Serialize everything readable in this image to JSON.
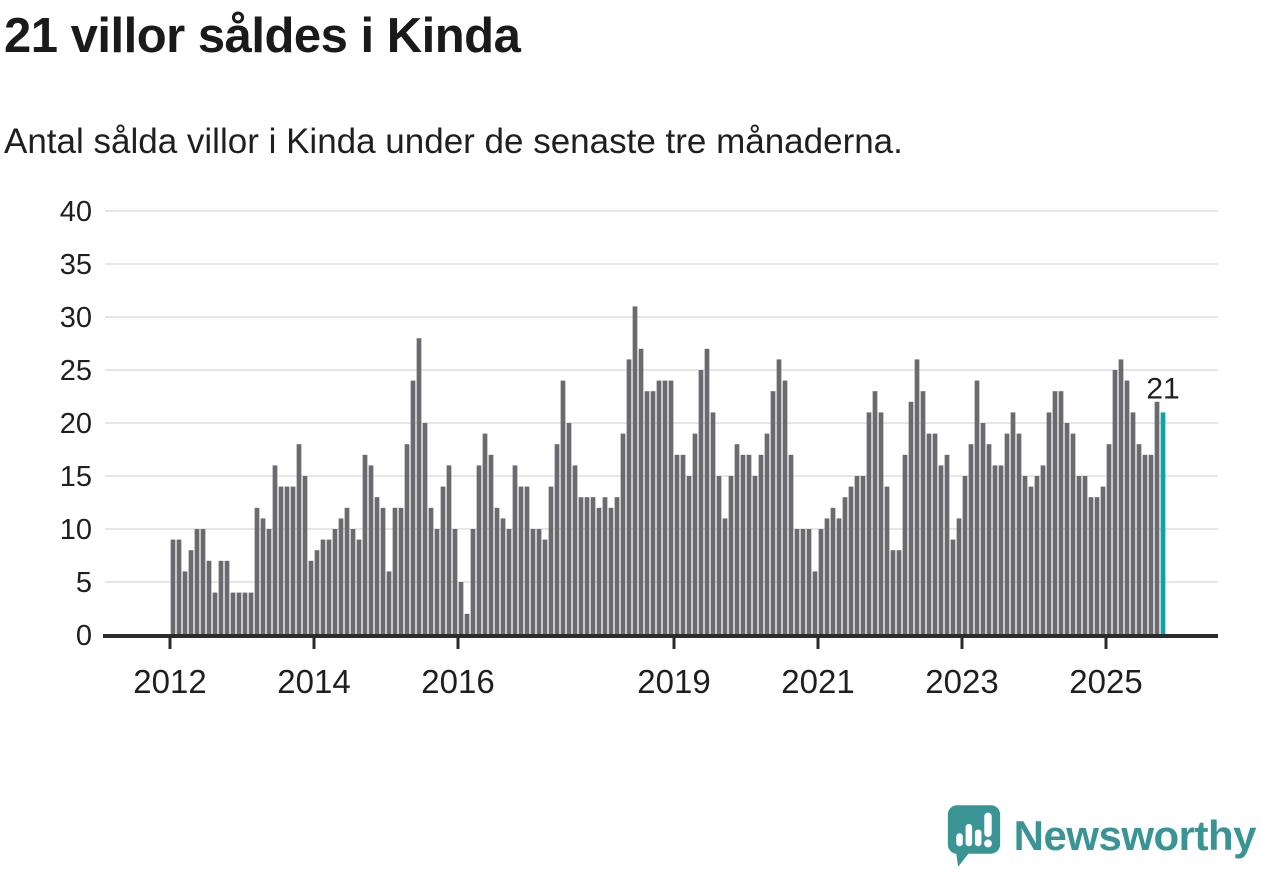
{
  "title": "21 villor såldes i Kinda",
  "subtitle": "Antal sålda villor i Kinda under de senaste tre månaderna.",
  "logo": {
    "text": "Newsworthy"
  },
  "colors": {
    "bar": "#6a6a6f",
    "highlight": "#11a1a3",
    "grid": "#e7e7e7",
    "axis": "#2b2b2b",
    "text": "#1f1f1f",
    "logo_teal": "#3a9493"
  },
  "chart_data": {
    "type": "bar",
    "title": "21 villor såldes i Kinda",
    "subtitle": "Antal sålda villor i Kinda under de senaste tre månaderna.",
    "unit": "sålda villor per 3 månader",
    "start_month": "2012-01",
    "end_month": "2025-10",
    "ylim": [
      0,
      40
    ],
    "y_ticks": [
      0,
      5,
      10,
      15,
      20,
      25,
      30,
      35,
      40
    ],
    "x_tick_years": [
      2012,
      2014,
      2016,
      2019,
      2021,
      2023,
      2025
    ],
    "grid": true,
    "highlight_last": true,
    "last_value_label": "21",
    "values_by_year": {
      "2012": [
        9,
        9,
        6,
        8,
        10,
        10,
        7,
        4,
        7,
        7,
        4,
        4
      ],
      "2013": [
        4,
        4,
        12,
        11,
        10,
        16,
        14,
        14,
        14,
        18,
        15,
        7
      ],
      "2014": [
        8,
        9,
        9,
        10,
        11,
        12,
        10,
        9,
        17,
        16,
        13,
        12
      ],
      "2015": [
        6,
        12,
        12,
        18,
        24,
        28,
        20,
        12,
        10,
        14,
        16,
        10
      ],
      "2016": [
        5,
        2,
        10,
        16,
        19,
        17,
        12,
        11,
        10,
        16,
        14,
        14
      ],
      "2017": [
        10,
        10,
        9,
        14,
        18,
        24,
        20,
        16,
        13,
        13,
        13,
        12
      ],
      "2018": [
        13,
        12,
        13,
        19,
        26,
        31,
        27,
        23,
        23,
        24,
        24,
        24
      ],
      "2019": [
        17,
        17,
        15,
        19,
        25,
        27,
        21,
        15,
        11,
        15,
        18,
        17
      ],
      "2020": [
        17,
        15,
        17,
        19,
        23,
        26,
        24,
        17,
        10,
        10,
        10,
        6
      ],
      "2021": [
        10,
        11,
        12,
        11,
        13,
        14,
        15,
        15,
        21,
        23,
        21,
        14
      ],
      "2022": [
        8,
        8,
        17,
        22,
        26,
        23,
        19,
        19,
        16,
        17,
        9,
        11
      ],
      "2023": [
        15,
        18,
        24,
        20,
        18,
        16,
        16,
        19,
        21,
        19,
        15,
        14
      ],
      "2024": [
        15,
        16,
        21,
        23,
        23,
        20,
        19,
        15,
        15,
        13,
        13,
        14
      ],
      "2025": [
        18,
        25,
        26,
        24,
        21,
        18,
        17,
        17,
        22,
        21
      ]
    }
  }
}
